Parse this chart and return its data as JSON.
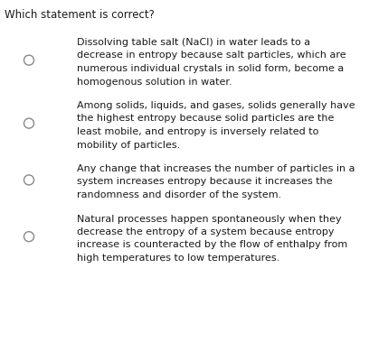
{
  "background_color": "#ffffff",
  "question": "Which statement is correct?",
  "text_color": "#1a1a1a",
  "circle_color": "#888888",
  "options": [
    {
      "lines": [
        "Dissolving table salt (NaCl) in water leads to a",
        "decrease in entropy because salt particles, which are",
        "numerous individual crystals in solid form, become a",
        "homogenous solution in water."
      ]
    },
    {
      "lines": [
        "Among solids, liquids, and gases, solids generally have",
        "the highest entropy because solid particles are the",
        "least mobile, and entropy is inversely related to",
        "mobility of particles."
      ]
    },
    {
      "lines": [
        "Any change that increases the number of particles in a",
        "system increases entropy because it increases the",
        "randomness and disorder of the system."
      ]
    },
    {
      "lines": [
        "Natural processes happen spontaneously when they",
        "decrease the entropy of a system because entropy",
        "increase is counteracted by the flow of enthalpy from",
        "high temperatures to low temperatures."
      ]
    }
  ],
  "question_fontsize": 8.5,
  "text_fontsize": 8.0,
  "fig_width": 4.08,
  "fig_height": 4.0,
  "dpi": 100
}
